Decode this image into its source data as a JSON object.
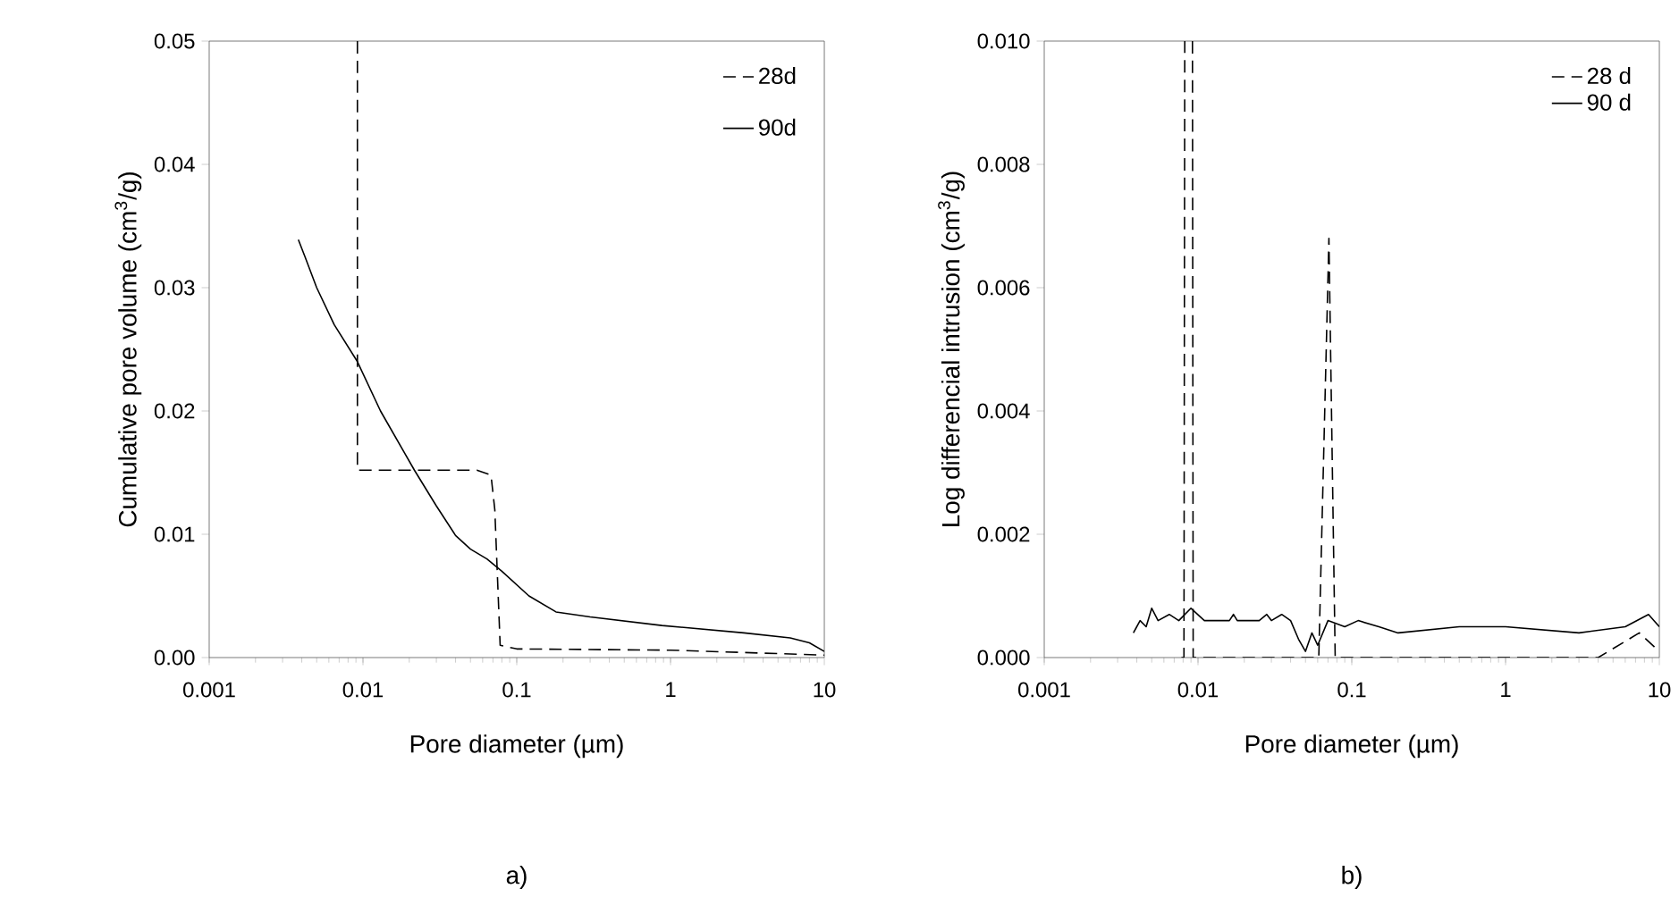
{
  "chart_data": [
    {
      "type": "line",
      "log": "x",
      "xlabel": "Pore diameter (µm)",
      "ylabel": "Cumulative pore volume (cm$^{3}$/g)",
      "annotations": [
        "a)"
      ],
      "legend": "top right",
      "marker": "none",
      "xlim": [
        0.001,
        10
      ],
      "xticks": [
        0.001,
        0.01,
        0.1,
        1,
        10
      ],
      "ylim": [
        0,
        0.05
      ],
      "yticks": [
        {
          "value": 0,
          "label": "0.00"
        },
        {
          "value": 0.01,
          "label": "0.01"
        },
        {
          "value": 0.02,
          "label": "0.02"
        },
        {
          "value": 0.03,
          "label": "0.03"
        },
        {
          "value": 0.04,
          "label": "0.04"
        },
        {
          "value": 0.05,
          "label": "0.05"
        }
      ],
      "series": [
        {
          "name": "28d",
          "color": "#000000",
          "line_style": "dashed",
          "x": [
            0.0092,
            0.0092,
            0.055,
            0.068,
            0.072,
            0.078,
            0.1,
            1,
            10
          ],
          "values": [
            0.05,
            0.0152,
            0.0152,
            0.0148,
            0.012,
            0.001,
            0.0007,
            0.0006,
            0.0002
          ]
        },
        {
          "name": "90d",
          "color": "#000000",
          "line_style": "solid",
          "x": [
            0.0038,
            0.0042,
            0.005,
            0.0065,
            0.0092,
            0.013,
            0.0216,
            0.03,
            0.04,
            0.05,
            0.064,
            0.08,
            0.12,
            0.18,
            0.3,
            0.88,
            3,
            6,
            8,
            10
          ],
          "values": [
            0.0339,
            0.0325,
            0.03,
            0.027,
            0.024,
            0.02,
            0.0152,
            0.0123,
            0.0099,
            0.0088,
            0.008,
            0.007,
            0.005,
            0.0037,
            0.0033,
            0.0026,
            0.002,
            0.0016,
            0.0012,
            0.0005
          ]
        }
      ]
    },
    {
      "type": "line",
      "log": "x",
      "xlabel": "Pore diameter (µm)",
      "ylabel": "Log differencial intrusion (cm$^{3}$/g)",
      "annotations": [
        "b)"
      ],
      "legend": "top right",
      "marker": "none",
      "xlim": [
        0.001,
        10
      ],
      "xticks": [
        0.001,
        0.01,
        0.1,
        1,
        10
      ],
      "ylim": [
        0,
        0.01
      ],
      "yticks": [
        {
          "value": 0,
          "label": "0.000"
        },
        {
          "value": 0.002,
          "label": "0.002"
        },
        {
          "value": 0.004,
          "label": "0.004"
        },
        {
          "value": 0.006,
          "label": "0.006"
        },
        {
          "value": 0.008,
          "label": "0.008"
        },
        {
          "value": 0.01,
          "label": "0.010"
        }
      ],
      "series": [
        {
          "name": "28 d",
          "color": "#000000",
          "line_style": "dashed",
          "x": [
            0.0078,
            0.0081,
            0.0082,
            0.0092,
            0.0093,
            0.061,
            0.071,
            0.078,
            4,
            7.4,
            10
          ],
          "values": [
            0,
            0,
            0.01,
            0.01,
            0,
            0,
            0.0068,
            0,
            0,
            0.0004,
            0.0001
          ]
        },
        {
          "name": "90 d",
          "color": "#000000",
          "line_style": "solid",
          "x": [
            0.0038,
            0.0042,
            0.0046,
            0.005,
            0.0055,
            0.0065,
            0.0075,
            0.009,
            0.011,
            0.016,
            0.017,
            0.018,
            0.025,
            0.028,
            0.03,
            0.035,
            0.04,
            0.045,
            0.05,
            0.055,
            0.06,
            0.07,
            0.09,
            0.11,
            0.15,
            0.2,
            0.5,
            1,
            3,
            6,
            8.5,
            10
          ],
          "values": [
            0.0004,
            0.0006,
            0.0005,
            0.0008,
            0.0006,
            0.0007,
            0.0006,
            0.0008,
            0.0006,
            0.0006,
            0.0007,
            0.0006,
            0.0006,
            0.0007,
            0.0006,
            0.0007,
            0.0006,
            0.0003,
            0.0001,
            0.0004,
            0.0002,
            0.0006,
            0.0005,
            0.0006,
            0.0005,
            0.0004,
            0.0005,
            0.0005,
            0.0004,
            0.0005,
            0.0007,
            0.0005
          ]
        }
      ]
    }
  ]
}
